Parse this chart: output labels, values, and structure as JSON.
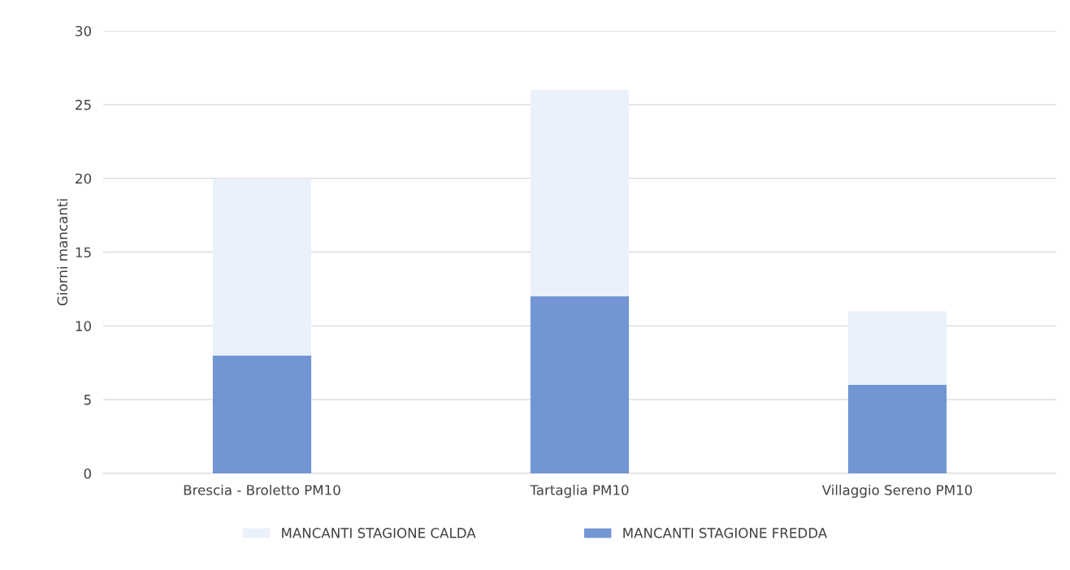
{
  "chart_data": {
    "type": "bar",
    "stacked": true,
    "ylabel": "Giorni mancanti",
    "categories": [
      "Brescia - Broletto PM10",
      "Tartaglia PM10",
      "Villaggio Sereno PM10"
    ],
    "series": [
      {
        "name": "MANCANTI STAGIONE FREDDA",
        "color": "#7296d3",
        "values": [
          8,
          12,
          6
        ]
      },
      {
        "name": "MANCANTI STAGIONE CALDA",
        "color": "#eaf1fa",
        "values": [
          12,
          14,
          5
        ]
      }
    ],
    "ylim": [
      0,
      30
    ],
    "yticks": [
      0,
      5,
      10,
      15,
      20,
      25,
      30
    ],
    "grid": "y",
    "legend": "bottom"
  }
}
